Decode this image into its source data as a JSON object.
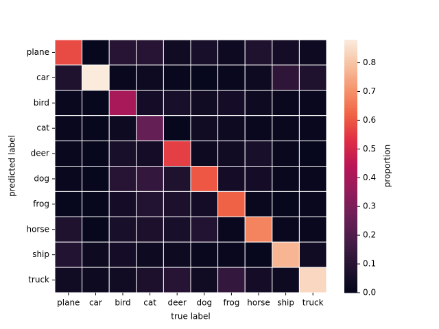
{
  "chart_data": {
    "type": "heatmap",
    "x_label": "true label",
    "y_label": "predicted label",
    "colorbar_label": "proportion",
    "x_categories": [
      "plane",
      "car",
      "bird",
      "cat",
      "deer",
      "dog",
      "frog",
      "horse",
      "ship",
      "truck"
    ],
    "y_categories": [
      "plane",
      "car",
      "bird",
      "cat",
      "deer",
      "dog",
      "frog",
      "horse",
      "ship",
      "truck"
    ],
    "values": [
      [
        0.58,
        0.01,
        0.1,
        0.1,
        0.04,
        0.06,
        0.03,
        0.08,
        0.05,
        0.03
      ],
      [
        0.08,
        0.88,
        0.02,
        0.03,
        0.02,
        0.01,
        0.02,
        0.03,
        0.12,
        0.08
      ],
      [
        0.02,
        0.01,
        0.4,
        0.05,
        0.06,
        0.04,
        0.05,
        0.03,
        0.02,
        0.02
      ],
      [
        0.02,
        0.01,
        0.03,
        0.25,
        0.01,
        0.04,
        0.03,
        0.02,
        0.02,
        0.02
      ],
      [
        0.02,
        0.01,
        0.06,
        0.05,
        0.56,
        0.03,
        0.04,
        0.06,
        0.02,
        0.01
      ],
      [
        0.02,
        0.01,
        0.1,
        0.13,
        0.08,
        0.6,
        0.05,
        0.05,
        0.02,
        0.02
      ],
      [
        0.01,
        0.01,
        0.05,
        0.09,
        0.07,
        0.05,
        0.62,
        0.02,
        0.01,
        0.02
      ],
      [
        0.08,
        0.01,
        0.06,
        0.07,
        0.06,
        0.09,
        0.02,
        0.68,
        0.02,
        0.02
      ],
      [
        0.09,
        0.03,
        0.05,
        0.03,
        0.03,
        0.02,
        0.02,
        0.01,
        0.77,
        0.04
      ],
      [
        0.04,
        0.03,
        0.04,
        0.07,
        0.1,
        0.04,
        0.13,
        0.05,
        0.03,
        0.84
      ]
    ],
    "zlim": [
      0,
      0.88
    ],
    "zticks": [
      {
        "value": 0,
        "label": "0.0"
      },
      {
        "value": 0.1,
        "label": "0.1"
      },
      {
        "value": 0.2,
        "label": "0.2"
      },
      {
        "value": 0.3,
        "label": "0.3"
      },
      {
        "value": 0.4,
        "label": "0.4"
      },
      {
        "value": 0.5,
        "label": "0.5"
      },
      {
        "value": 0.6,
        "label": "0.6"
      },
      {
        "value": 0.7,
        "label": "0.7"
      },
      {
        "value": 0.8,
        "label": "0.8"
      }
    ],
    "colorscale": [
      "#03051a",
      "#221331",
      "#451c47",
      "#6a1f56",
      "#921c5b",
      "#b91657",
      "#dd2c45",
      "#f06043",
      "#f5926a",
      "#f7c0a0",
      "#faebdd"
    ]
  }
}
